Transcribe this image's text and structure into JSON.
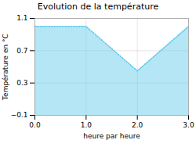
{
  "chart_data": {
    "type": "area",
    "title": "Evolution de la température",
    "xlabel": "heure par heure",
    "ylabel": "Température en °C",
    "x": [
      0,
      1,
      2,
      3
    ],
    "values": [
      1.0,
      1.0,
      0.45,
      1.0
    ],
    "color": "#5bc8e8",
    "line_style": "dotted",
    "xlim": [
      0,
      3
    ],
    "xticks": [
      0,
      1,
      2,
      3
    ],
    "ylim": [
      -0.1,
      1.1
    ],
    "yticks": [
      -0.1,
      0.3,
      0.7,
      1.1
    ],
    "grid": true
  }
}
